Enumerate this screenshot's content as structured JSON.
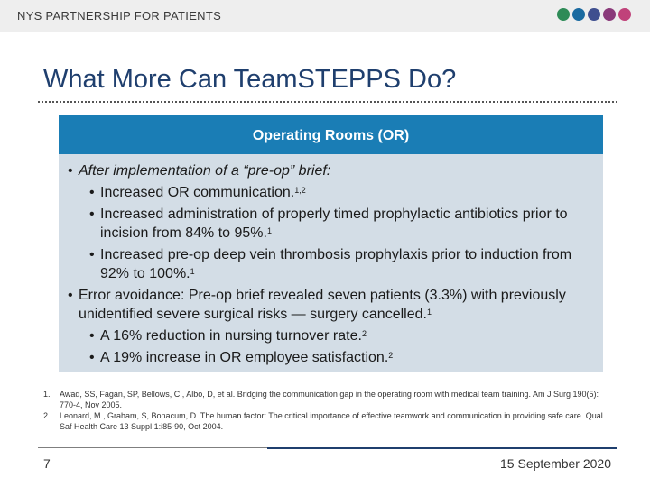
{
  "header": {
    "org": "NYS PARTNERSHIP FOR PATIENTS",
    "dot_colors": [
      "#2e8b57",
      "#1a6aa0",
      "#3f4f8f",
      "#8a3a7a",
      "#c0427a"
    ]
  },
  "title": "What More Can TeamSTEPPS Do?",
  "panel": {
    "heading": "Operating Rooms (OR)",
    "bullet_char": "•",
    "items": [
      {
        "text": "After implementation of a “pre-op” brief:",
        "sup": ""
      },
      {
        "text": "Increased OR communication.",
        "sup": "1,2"
      },
      {
        "text": "Increased administration of properly timed prophylactic antibiotics prior to incision from 84% to 95%.",
        "sup": "1"
      },
      {
        "text": "Increased pre-op deep vein thrombosis prophylaxis prior to induction from 92% to 100%.",
        "sup": "1"
      },
      {
        "text": "Error avoidance: Pre-op brief revealed seven patients (3.3%) with previously unidentified severe surgical risks — surgery cancelled.",
        "sup": "1"
      },
      {
        "text": "A 16% reduction in nursing turnover rate.",
        "sup": "2"
      },
      {
        "text": "A 19% increase in OR employee satisfaction.",
        "sup": "2"
      }
    ]
  },
  "references": [
    {
      "num": "1.",
      "text": "Awad, SS, Fagan, SP, Bellows, C., Albo, D, et al. Bridging the communication gap in the operating room with medical team training. Am J Surg 190(5): 770-4, Nov 2005."
    },
    {
      "num": "2.",
      "text": "Leonard, M., Graham, S, Bonacum, D. The human factor: The critical importance of effective teamwork and communication in providing safe care. Qual Saf Health Care 13 Suppl 1:i85-90, Oct 2004."
    }
  ],
  "footer": {
    "page": "7",
    "date": "15 September 2020"
  }
}
